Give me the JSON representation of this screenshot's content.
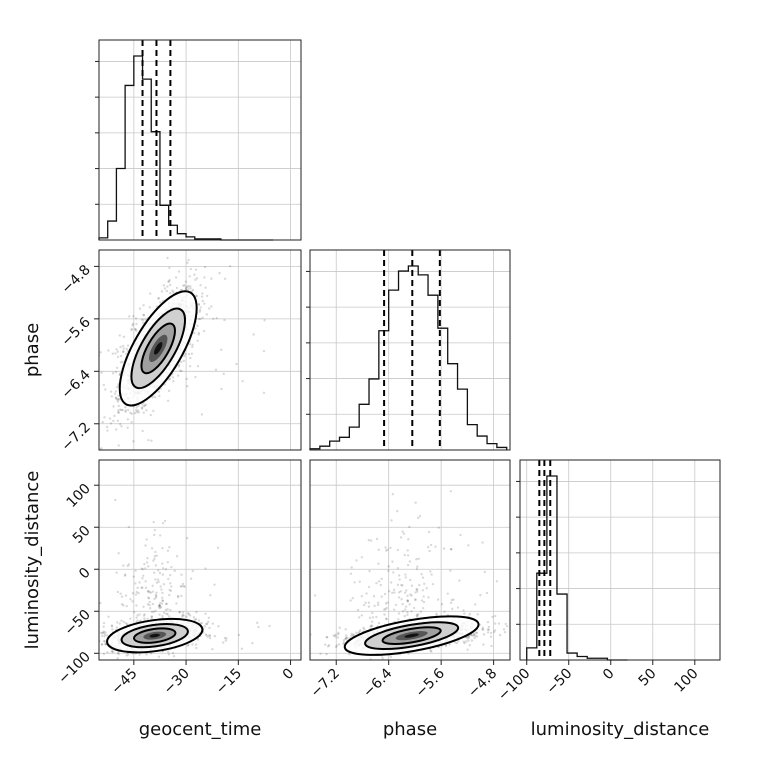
{
  "chart_data": {
    "type": "corner",
    "parameters": [
      "geocent_time",
      "phase",
      "luminosity_distance"
    ],
    "axis_labels": {
      "x": [
        "geocent_time",
        "phase",
        "luminosity_distance"
      ],
      "y": [
        "phase",
        "luminosity_distance"
      ]
    },
    "ranges": {
      "geocent_time": [
        -55,
        3
      ],
      "phase": [
        -7.6,
        -4.55
      ],
      "luminosity_distance": [
        -108,
        130
      ]
    },
    "ticks": {
      "geocent_time": [
        -45,
        -30,
        -15,
        0
      ],
      "phase": [
        -7.2,
        -6.4,
        -5.6,
        -4.8
      ],
      "luminosity_distance_y": [
        -100,
        -50,
        0,
        50,
        100
      ],
      "luminosity_distance_x": [
        -100,
        -50,
        0,
        50,
        100
      ]
    },
    "tick_labels": {
      "geocent_time": [
        "−45",
        "−30",
        "−15",
        "0"
      ],
      "phase": [
        "−7.2",
        "−6.4",
        "−5.6",
        "−4.8"
      ],
      "luminosity_distance_y": [
        "−100",
        "−50",
        "0",
        "50",
        "100"
      ],
      "luminosity_distance_x": [
        "−100",
        "−50",
        "0",
        "50",
        "100"
      ]
    },
    "quantiles": {
      "geocent_time": [
        -42.5,
        -38.5,
        -34.5
      ],
      "phase": [
        -6.47,
        -6.04,
        -5.62
      ],
      "luminosity_distance": [
        -85,
        -79,
        -72
      ]
    },
    "histograms": {
      "geocent_time": {
        "edges": [
          -55,
          -52.5,
          -50,
          -47.5,
          -45,
          -42.5,
          -40,
          -37.5,
          -35,
          -32.5,
          -30,
          -27.5,
          -25,
          -22.5,
          -20,
          -17.5,
          -15,
          -12.5,
          -10,
          -7.5,
          -5
        ],
        "counts": [
          2,
          18,
          68,
          147,
          175,
          153,
          103,
          33,
          14,
          6,
          3,
          1,
          1,
          1,
          0,
          0,
          0,
          0,
          0,
          0
        ]
      },
      "phase": {
        "edges": [
          -7.6,
          -7.45,
          -7.3,
          -7.15,
          -7.0,
          -6.85,
          -6.7,
          -6.55,
          -6.4,
          -6.25,
          -6.1,
          -5.95,
          -5.8,
          -5.65,
          -5.5,
          -5.35,
          -5.2,
          -5.05,
          -4.9,
          -4.75,
          -4.6
        ],
        "counts": [
          1,
          3,
          7,
          10,
          18,
          36,
          56,
          94,
          126,
          141,
          145,
          138,
          122,
          96,
          68,
          48,
          20,
          11,
          5,
          2
        ]
      },
      "luminosity_distance": {
        "edges": [
          -100,
          -88,
          -76,
          -64,
          -52,
          -40,
          -28,
          -16,
          -4,
          8,
          20
        ],
        "counts": [
          7,
          50,
          106,
          38,
          4,
          2,
          1,
          1,
          0,
          0
        ]
      }
    },
    "scatter_2d": {
      "geocent_time_phase": {
        "center": [
          -38,
          -6.05
        ],
        "spread": [
          5.5,
          0.45
        ],
        "correlation": 0.7
      },
      "geocent_time_luminosity_distance": {
        "center": [
          -39,
          -79
        ],
        "spread": [
          6,
          8
        ],
        "correlation": 0.35
      },
      "phase_luminosity_distance": {
        "center": [
          -6.05,
          -79
        ],
        "spread": [
          0.45,
          8
        ],
        "correlation": 0.4
      }
    },
    "grid": true,
    "legend": "none"
  }
}
